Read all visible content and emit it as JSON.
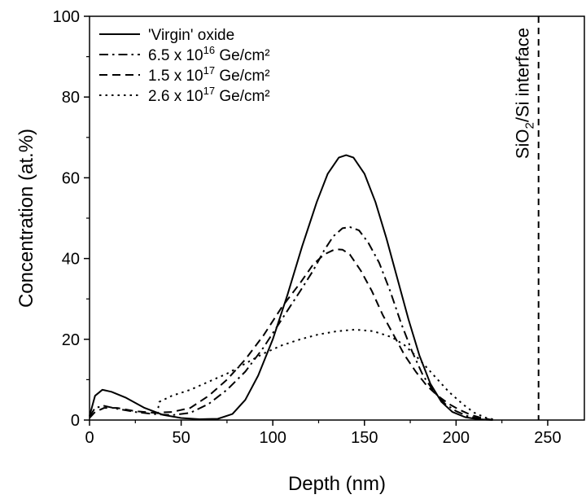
{
  "chart_data": {
    "type": "line",
    "title": "",
    "xlabel": "Depth (nm)",
    "ylabel": "Concentration (at.%)",
    "xlim": [
      0,
      270
    ],
    "ylim": [
      0,
      100
    ],
    "x_ticks": [
      0,
      50,
      100,
      150,
      200,
      250
    ],
    "y_ticks": [
      0,
      20,
      40,
      60,
      80,
      100
    ],
    "grid": false,
    "legend_position": "top-left",
    "series": [
      {
        "name": "'Virgin' oxide",
        "legend_base": "'Virgin' oxide",
        "legend_exp": "",
        "legend_unit": "",
        "dash": "solid",
        "points": [
          [
            0,
            1
          ],
          [
            3,
            6
          ],
          [
            7,
            7.5
          ],
          [
            12,
            7
          ],
          [
            20,
            5.5
          ],
          [
            30,
            3
          ],
          [
            40,
            1.3
          ],
          [
            50,
            0.5
          ],
          [
            60,
            0.2
          ],
          [
            70,
            0.3
          ],
          [
            78,
            1.5
          ],
          [
            85,
            5
          ],
          [
            92,
            11
          ],
          [
            100,
            20
          ],
          [
            108,
            31
          ],
          [
            116,
            43
          ],
          [
            124,
            54
          ],
          [
            130,
            61
          ],
          [
            136,
            65
          ],
          [
            140,
            65.6
          ],
          [
            144,
            65
          ],
          [
            150,
            61
          ],
          [
            156,
            54
          ],
          [
            162,
            45
          ],
          [
            168,
            35
          ],
          [
            174,
            25
          ],
          [
            180,
            16
          ],
          [
            186,
            9
          ],
          [
            192,
            4.5
          ],
          [
            198,
            2
          ],
          [
            205,
            0.7
          ],
          [
            212,
            0.2
          ],
          [
            220,
            0
          ]
        ]
      },
      {
        "name": "6.5 x 10^16 Ge/cm²",
        "legend_base": "6.5 x 10",
        "legend_exp": "16",
        "legend_unit": "Ge/cm²",
        "dash": "dashdot",
        "points": [
          [
            0,
            0.8
          ],
          [
            3,
            3
          ],
          [
            8,
            3.5
          ],
          [
            15,
            2.8
          ],
          [
            25,
            2
          ],
          [
            35,
            1.5
          ],
          [
            45,
            1.2
          ],
          [
            55,
            1.8
          ],
          [
            65,
            4
          ],
          [
            75,
            7.5
          ],
          [
            85,
            12
          ],
          [
            95,
            18
          ],
          [
            105,
            25
          ],
          [
            115,
            32
          ],
          [
            122,
            37
          ],
          [
            128,
            42
          ],
          [
            133,
            45.5
          ],
          [
            138,
            47.5
          ],
          [
            142,
            47.8
          ],
          [
            147,
            47
          ],
          [
            152,
            44
          ],
          [
            158,
            39
          ],
          [
            164,
            32
          ],
          [
            170,
            24
          ],
          [
            176,
            17
          ],
          [
            182,
            11
          ],
          [
            188,
            7
          ],
          [
            194,
            4
          ],
          [
            200,
            2.2
          ],
          [
            206,
            1
          ],
          [
            212,
            0.4
          ],
          [
            218,
            0
          ]
        ]
      },
      {
        "name": "1.5 x 10^17 Ge/cm²",
        "legend_base": "1.5 x 10",
        "legend_exp": "17",
        "legend_unit": "Ge/cm²",
        "dash": "dash",
        "points": [
          [
            0,
            0.5
          ],
          [
            3,
            2
          ],
          [
            8,
            3
          ],
          [
            15,
            3
          ],
          [
            25,
            2.2
          ],
          [
            35,
            1.8
          ],
          [
            45,
            2
          ],
          [
            55,
            3
          ],
          [
            65,
            6
          ],
          [
            75,
            10
          ],
          [
            85,
            15
          ],
          [
            95,
            21
          ],
          [
            105,
            28
          ],
          [
            115,
            34
          ],
          [
            122,
            38.5
          ],
          [
            128,
            41
          ],
          [
            134,
            42.3
          ],
          [
            138,
            42.2
          ],
          [
            142,
            41
          ],
          [
            148,
            37
          ],
          [
            154,
            32
          ],
          [
            160,
            26
          ],
          [
            166,
            21
          ],
          [
            172,
            16
          ],
          [
            178,
            12
          ],
          [
            184,
            8.5
          ],
          [
            190,
            6
          ],
          [
            196,
            4
          ],
          [
            202,
            2.5
          ],
          [
            208,
            1.3
          ],
          [
            214,
            0.5
          ],
          [
            220,
            0
          ]
        ]
      },
      {
        "name": "2.6 x 10^17 Ge/cm²",
        "legend_base": "2.6 x 10",
        "legend_exp": "17",
        "legend_unit": "Ge/cm²",
        "dash": "dot",
        "points": [
          [
            37,
            1.5
          ],
          [
            38,
            4.5
          ],
          [
            45,
            6
          ],
          [
            55,
            7.5
          ],
          [
            65,
            9.5
          ],
          [
            75,
            11.5
          ],
          [
            85,
            14
          ],
          [
            95,
            16.5
          ],
          [
            105,
            18.5
          ],
          [
            115,
            20
          ],
          [
            125,
            21.2
          ],
          [
            135,
            22
          ],
          [
            145,
            22.4
          ],
          [
            155,
            22
          ],
          [
            165,
            20.5
          ],
          [
            172,
            18.5
          ],
          [
            180,
            15
          ],
          [
            188,
            11
          ],
          [
            196,
            7
          ],
          [
            204,
            3.8
          ],
          [
            210,
            1.8
          ],
          [
            216,
            0.6
          ],
          [
            222,
            0
          ]
        ]
      }
    ],
    "annotations": [
      {
        "x": 245,
        "style": "dashed-vertical",
        "label_main": "SiO",
        "label_sub": "2",
        "label_rest": "/Si interface"
      }
    ]
  }
}
